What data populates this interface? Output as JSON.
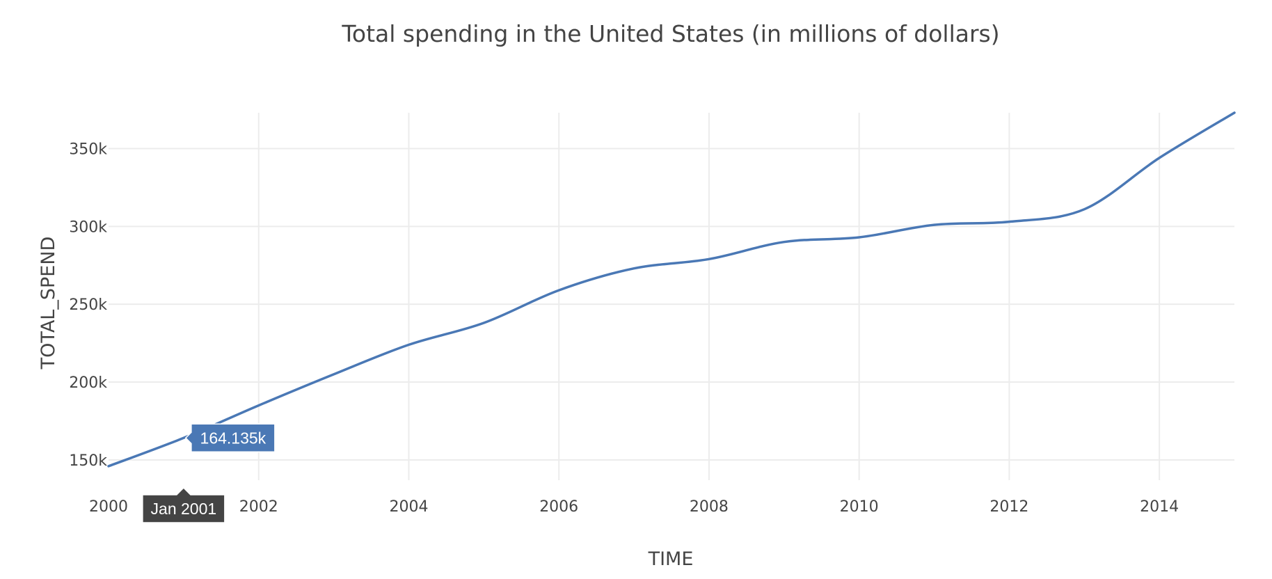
{
  "chart_data": {
    "type": "line",
    "title": "Total spending in the United States (in millions of dollars)",
    "xlabel": "TIME",
    "ylabel": "TOTAL_SPEND",
    "xlim": [
      2000,
      2015
    ],
    "ylim": [
      137000,
      373000
    ],
    "x_ticks": [
      2000,
      2002,
      2004,
      2006,
      2008,
      2010,
      2012,
      2014
    ],
    "x_tick_labels": [
      "2000",
      "2002",
      "2004",
      "2006",
      "2008",
      "2010",
      "2012",
      "2014"
    ],
    "y_ticks": [
      150000,
      200000,
      250000,
      300000,
      350000
    ],
    "y_tick_labels": [
      "150k",
      "200k",
      "250k",
      "300k",
      "350k"
    ],
    "grid": true,
    "series": [
      {
        "x": [
          2000,
          2001,
          2002,
          2003,
          2004,
          2005,
          2006,
          2007,
          2008,
          2009,
          2010,
          2011,
          2012,
          2013,
          2014,
          2015
        ],
        "values": [
          146000,
          164135,
          185000,
          205000,
          224000,
          238000,
          259000,
          273000,
          279000,
          290000,
          293000,
          301000,
          303000,
          311000,
          344000,
          373000
        ],
        "color": "#4a78b5"
      }
    ],
    "hover": {
      "x_label": "Jan 2001",
      "value_label": "164.135k",
      "x": 2001,
      "value": 164135
    }
  }
}
